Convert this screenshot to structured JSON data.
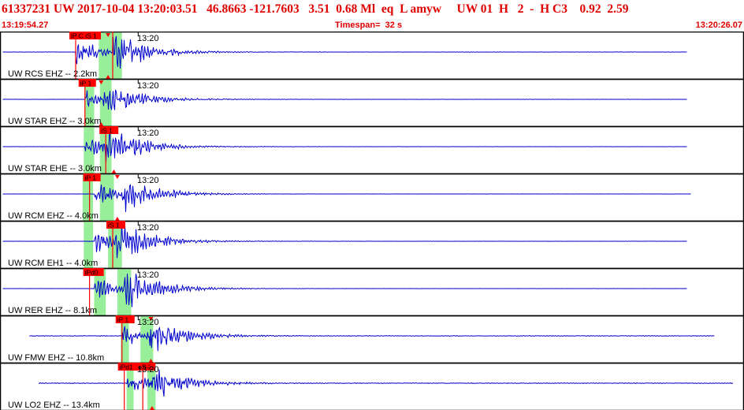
{
  "header": {
    "title": "61337231 UW 2017-10-04 13:20:03.51   46.8663 -121.7603   3.51  0.68 Ml  eq  L amyw     UW 01  H   2  -  H C3    0.92  2.59",
    "start_time": "13:19:54.27",
    "timespan": "Timespan=  32 s",
    "end_time": "13:20:26.07"
  },
  "colors": {
    "header_text": "#e00000",
    "waveform": "#0000cc",
    "pick": "#ff0000",
    "window": "#99ee99",
    "border": "#000000"
  },
  "panels": [
    {
      "id": "rcs-ehz",
      "time_label": "13:20",
      "station_label": "UW RCS EHZ -- 2.2km",
      "amplitude": 1.0,
      "noise": 0.05,
      "p_time": 3.2,
      "s_time": 4.8,
      "trace_start": 0.05,
      "trace_end": 29.6,
      "windows": [
        [
          4.2,
          5.2
        ]
      ],
      "picks": [
        {
          "label": "iP C iS 1",
          "time": 3.2,
          "flag_width": 40,
          "kind": "P"
        },
        {
          "label": "",
          "time": 4.8,
          "flag_width": 0,
          "kind": "S"
        }
      ],
      "markers": [
        4.6
      ]
    },
    {
      "id": "star-ehz",
      "time_label": "13:20",
      "station_label": "UW STAR EHZ -- 3.0km",
      "amplitude": 0.8,
      "noise": 0.04,
      "p_time": 3.6,
      "s_time": 4.4,
      "trace_start": 0.05,
      "trace_end": 29.6,
      "windows": [
        [
          3.6,
          4.0
        ],
        [
          4.25,
          4.75
        ]
      ],
      "picks": [
        {
          "label": "iP 1",
          "time": 3.6,
          "flag_width": 22,
          "kind": "P"
        }
      ],
      "markers": [
        4.3
      ]
    },
    {
      "id": "star-ehe",
      "time_label": "13:20",
      "station_label": "UW STAR EHE -- 3.0km",
      "amplitude": 0.9,
      "noise": 0.04,
      "p_time": 3.6,
      "s_time": 4.5,
      "trace_start": 0.05,
      "trace_end": 29.6,
      "windows": [
        [
          3.55,
          4.0
        ],
        [
          4.25,
          4.75
        ]
      ],
      "picks": [
        {
          "label": "iS 1",
          "time": 4.5,
          "flag_width": 24,
          "kind": "S"
        }
      ],
      "markers": [
        4.85
      ]
    },
    {
      "id": "rcm-ehz",
      "time_label": "13:20",
      "station_label": "UW RCM EHZ -- 4.0km",
      "amplitude": 0.85,
      "noise": 0.03,
      "p_time": 4.0,
      "s_time": 5.2,
      "trace_start": 0.05,
      "trace_end": 29.8,
      "windows": [
        [
          3.5,
          3.95
        ],
        [
          4.25,
          4.85
        ]
      ],
      "picks": [
        {
          "label": "iP 1",
          "time": 3.8,
          "flag_width": 22,
          "kind": "P"
        }
      ],
      "markers": [
        5.0
      ]
    },
    {
      "id": "rcm-eh1",
      "time_label": "13:20",
      "station_label": "UW RCM EH1 -- 4.0km",
      "amplitude": 0.95,
      "noise": 0.04,
      "p_time": 4.0,
      "s_time": 4.9,
      "trace_start": 0.05,
      "trace_end": 29.6,
      "windows": [
        [
          3.55,
          3.95
        ],
        [
          4.6,
          5.2
        ]
      ],
      "picks": [
        {
          "label": "iS 1",
          "time": 4.8,
          "flag_width": 24,
          "kind": "S"
        }
      ],
      "markers": []
    },
    {
      "id": "rer-ehz",
      "time_label": "13:20",
      "station_label": "UW RER EHZ -- 8.1km",
      "amplitude": 0.95,
      "noise": 0.03,
      "p_time": 4.0,
      "s_time": 5.3,
      "trace_start": 0.05,
      "trace_end": 29.6,
      "windows": [
        [
          4.0,
          4.5
        ],
        [
          5.0,
          5.6
        ]
      ],
      "picks": [
        {
          "label": "iPd0",
          "time": 3.8,
          "flag_width": 26,
          "kind": "P"
        }
      ],
      "markers": []
    },
    {
      "id": "fmw-ehz",
      "time_label": "13:20",
      "station_label": "UW FMW EHZ -- 10.8km",
      "amplitude": 0.8,
      "noise": 0.1,
      "p_time": 5.2,
      "s_time": 6.4,
      "trace_start": 1.2,
      "trace_end": 30.8,
      "windows": [
        [
          5.15,
          5.5
        ],
        [
          6.0,
          6.55
        ]
      ],
      "picks": [
        {
          "label": "iP 1",
          "time": 5.2,
          "flag_width": 24,
          "kind": "P"
        }
      ],
      "markers": [
        6.45
      ]
    },
    {
      "id": "lo2-ehz",
      "time_label": "13:20",
      "station_label": "UW LO2 EHZ -- 13.4km",
      "amplitude": 0.75,
      "noise": 0.12,
      "p_time": 5.4,
      "s_time": 6.4,
      "trace_start": 1.6,
      "trace_end": 31.6,
      "windows": [
        [
          5.4,
          5.7
        ],
        [
          6.3,
          6.65
        ]
      ],
      "picks": [
        {
          "label": "iPd1",
          "time": 5.3,
          "flag_width": 26,
          "kind": "P"
        },
        {
          "label": "eS 2",
          "time": 6.1,
          "flag_width": 24,
          "kind": "S"
        }
      ],
      "markers": [
        6.5
      ]
    }
  ]
}
